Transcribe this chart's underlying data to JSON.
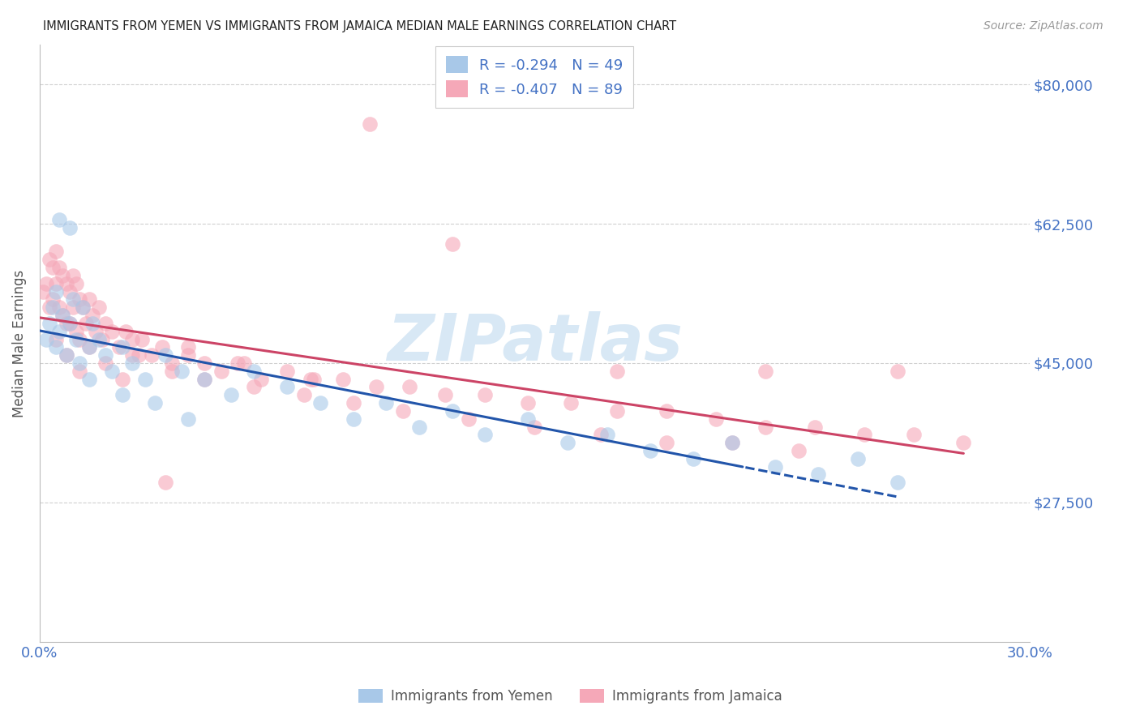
{
  "title": "IMMIGRANTS FROM YEMEN VS IMMIGRANTS FROM JAMAICA MEDIAN MALE EARNINGS CORRELATION CHART",
  "source": "Source: ZipAtlas.com",
  "ylabel": "Median Male Earnings",
  "xlim_min": 0.0,
  "xlim_max": 0.3,
  "ylim_min": 10000,
  "ylim_max": 85000,
  "yticks": [
    27500,
    45000,
    62500,
    80000
  ],
  "ytick_labels": [
    "$27,500",
    "$45,000",
    "$62,500",
    "$80,000"
  ],
  "background_color": "#ffffff",
  "grid_color": "#d0d0d0",
  "watermark_text": "ZIPatlas",
  "watermark_color": "#d8e8f5",
  "legend_r1": "-0.294",
  "legend_n1": "49",
  "legend_r2": "-0.407",
  "legend_n2": "89",
  "color_yemen": "#a8c8e8",
  "color_jamaica": "#f5a8b8",
  "line_color_yemen": "#2255aa",
  "line_color_jamaica": "#cc4466",
  "label_yemen": "Immigrants from Yemen",
  "label_jamaica": "Immigrants from Jamaica",
  "axis_label_color": "#4472c4",
  "legend_text_color": "#4472c4",
  "title_color": "#222222",
  "marker_size": 180,
  "marker_alpha": 0.6,
  "yemen_x": [
    0.002,
    0.003,
    0.004,
    0.005,
    0.005,
    0.006,
    0.007,
    0.008,
    0.009,
    0.01,
    0.011,
    0.012,
    0.013,
    0.015,
    0.016,
    0.018,
    0.02,
    0.022,
    0.025,
    0.028,
    0.032,
    0.038,
    0.043,
    0.05,
    0.058,
    0.065,
    0.075,
    0.085,
    0.095,
    0.105,
    0.115,
    0.125,
    0.135,
    0.148,
    0.16,
    0.172,
    0.185,
    0.198,
    0.21,
    0.223,
    0.236,
    0.248,
    0.26,
    0.015,
    0.025,
    0.035,
    0.045,
    0.009,
    0.006
  ],
  "yemen_y": [
    48000,
    50000,
    52000,
    54000,
    47000,
    49000,
    51000,
    46000,
    50000,
    53000,
    48000,
    45000,
    52000,
    47000,
    50000,
    48000,
    46000,
    44000,
    47000,
    45000,
    43000,
    46000,
    44000,
    43000,
    41000,
    44000,
    42000,
    40000,
    38000,
    40000,
    37000,
    39000,
    36000,
    38000,
    35000,
    36000,
    34000,
    33000,
    35000,
    32000,
    31000,
    33000,
    30000,
    43000,
    41000,
    40000,
    38000,
    62000,
    63000
  ],
  "jamaica_x": [
    0.001,
    0.002,
    0.003,
    0.003,
    0.004,
    0.004,
    0.005,
    0.005,
    0.006,
    0.006,
    0.007,
    0.007,
    0.008,
    0.008,
    0.009,
    0.009,
    0.01,
    0.01,
    0.011,
    0.011,
    0.012,
    0.012,
    0.013,
    0.014,
    0.015,
    0.016,
    0.017,
    0.018,
    0.019,
    0.02,
    0.022,
    0.024,
    0.026,
    0.028,
    0.031,
    0.034,
    0.037,
    0.04,
    0.045,
    0.05,
    0.055,
    0.06,
    0.067,
    0.075,
    0.083,
    0.092,
    0.102,
    0.112,
    0.123,
    0.135,
    0.148,
    0.161,
    0.175,
    0.19,
    0.205,
    0.22,
    0.235,
    0.25,
    0.265,
    0.28,
    0.005,
    0.008,
    0.012,
    0.015,
    0.02,
    0.025,
    0.03,
    0.04,
    0.05,
    0.065,
    0.08,
    0.095,
    0.11,
    0.13,
    0.15,
    0.17,
    0.19,
    0.21,
    0.23,
    0.038,
    0.1,
    0.125,
    0.175,
    0.22,
    0.26,
    0.028,
    0.045,
    0.062,
    0.082
  ],
  "jamaica_y": [
    54000,
    55000,
    58000,
    52000,
    57000,
    53000,
    59000,
    55000,
    57000,
    52000,
    56000,
    51000,
    55000,
    50000,
    54000,
    50000,
    56000,
    52000,
    55000,
    49000,
    53000,
    48000,
    52000,
    50000,
    53000,
    51000,
    49000,
    52000,
    48000,
    50000,
    49000,
    47000,
    49000,
    46000,
    48000,
    46000,
    47000,
    45000,
    46000,
    45000,
    44000,
    45000,
    43000,
    44000,
    43000,
    43000,
    42000,
    42000,
    41000,
    41000,
    40000,
    40000,
    39000,
    39000,
    38000,
    37000,
    37000,
    36000,
    36000,
    35000,
    48000,
    46000,
    44000,
    47000,
    45000,
    43000,
    46000,
    44000,
    43000,
    42000,
    41000,
    40000,
    39000,
    38000,
    37000,
    36000,
    35000,
    35000,
    34000,
    30000,
    75000,
    60000,
    44000,
    44000,
    44000,
    48000,
    47000,
    45000,
    43000
  ]
}
